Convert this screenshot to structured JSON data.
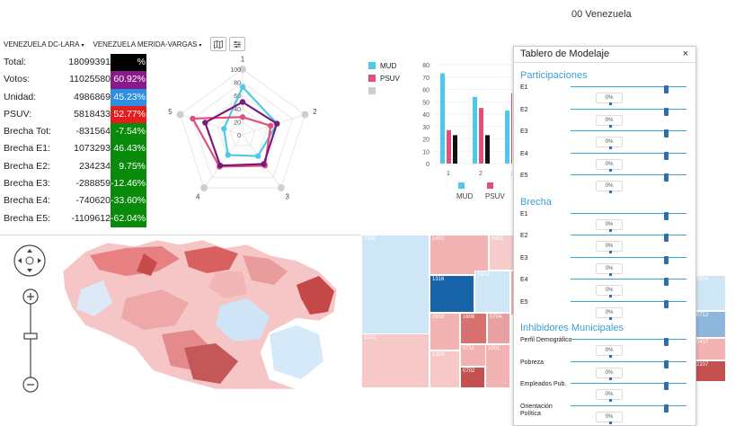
{
  "window": {
    "title": "00 Venezuela"
  },
  "toolbar": {
    "dropdown1": "VENEZUELA DC-LARA",
    "dropdown2": "VENEZUELA MERIDA-VARGAS",
    "caret": "▾",
    "map_icon": "map-icon",
    "settings_icon": "sliders-icon"
  },
  "stats": [
    {
      "label": "Total:",
      "value": "18099391",
      "pct": "%",
      "color": "#000000"
    },
    {
      "label": "Votos:",
      "value": "11025580",
      "pct": "60.92%",
      "color": "#8a1a8a"
    },
    {
      "label": "Unidad:",
      "value": "4986869",
      "pct": "45.23%",
      "color": "#2d8fe3"
    },
    {
      "label": "PSUV:",
      "value": "5818433",
      "pct": "52.77%",
      "color": "#e51d1d"
    },
    {
      "label": "Brecha Tot:",
      "value": "-831564",
      "pct": "-7.54%",
      "color": "#0a8a0a"
    },
    {
      "label": "Brecha E1:",
      "value": "1073293",
      "pct": "46.43%",
      "color": "#0a8a0a"
    },
    {
      "label": "Brecha E2:",
      "value": "234234",
      "pct": "9.75%",
      "color": "#0a8a0a"
    },
    {
      "label": "Brecha E3:",
      "value": "-288859",
      "pct": "-12.46%",
      "color": "#0a8a0a"
    },
    {
      "label": "Brecha E4:",
      "value": "-740620",
      "pct": "-33.60%",
      "color": "#0a8a0a"
    },
    {
      "label": "Brecha E5:",
      "value": "-1109612",
      "pct": "-62.04%",
      "color": "#0a8a0a"
    }
  ],
  "chart_data": [
    {
      "type": "radar",
      "axes": [
        "1",
        "2",
        "3",
        "4",
        "5"
      ],
      "scale_ticks": [
        "0",
        "20",
        "40",
        "60",
        "80",
        "100"
      ],
      "rmax": 100,
      "series": [
        {
          "color": "#4fc9e8",
          "values": [
            73,
            55,
            40,
            38,
            30
          ]
        },
        {
          "color": "#e0507a",
          "values": [
            27,
            45,
            58,
            60,
            80
          ]
        },
        {
          "color": "#7a1a7a",
          "values": [
            50,
            55,
            55,
            58,
            60
          ]
        }
      ]
    },
    {
      "type": "bar",
      "categories": [
        "1",
        "2",
        "3"
      ],
      "ylim": [
        0,
        80
      ],
      "yticks": [
        "0",
        "10",
        "20",
        "30",
        "40",
        "50",
        "60",
        "70",
        "80"
      ],
      "series": [
        {
          "name": "MUD",
          "color": "#4fc9e8",
          "values": [
            73,
            54,
            43
          ]
        },
        {
          "name": "PSUV",
          "color": "#e0507a",
          "values": [
            27,
            45,
            57
          ]
        },
        {
          "name": "",
          "color": "#111111",
          "values": [
            23,
            23,
            0
          ]
        }
      ]
    }
  ],
  "legend": [
    {
      "name": "MUD",
      "color": "#4fc9e8"
    },
    {
      "name": "PSUV",
      "color": "#e0507a"
    },
    {
      "name": "",
      "color": "#cccccc"
    }
  ],
  "treemap": [
    {
      "text": "2106",
      "color": "#cfe6f7"
    },
    {
      "text": "1407",
      "color": "#f3b3b3"
    },
    {
      "text": "0401",
      "color": "#f7cccc"
    },
    {
      "text": "1316",
      "color": "#1864a8"
    },
    {
      "text": "1603",
      "color": "#cfe6f7"
    },
    {
      "text": "0910",
      "color": "#f3b3b3"
    },
    {
      "text": "1606",
      "color": "#d97070"
    },
    {
      "text": "0704",
      "color": "#e8a0a0"
    },
    {
      "text": "1102",
      "color": "#f7c8c8"
    },
    {
      "text": "1303",
      "color": "#f7c8c8"
    },
    {
      "text": "0711",
      "color": "#f3b3b3"
    },
    {
      "text": "0702",
      "color": "#c45050"
    },
    {
      "text": "1001",
      "color": "#f3b3b3"
    },
    {
      "text": "0707",
      "color": "#f7cccc"
    },
    {
      "text": "1805",
      "color": "#f3b3b3"
    },
    {
      "text": "0904",
      "color": "#cfe6f7"
    },
    {
      "text": "0712",
      "color": "#8fb7dc"
    },
    {
      "text": "0417",
      "color": "#f3b3b3"
    },
    {
      "text": "2107",
      "color": "#c45050"
    }
  ],
  "panel": {
    "title": "Tablero de Modelaje",
    "close": "×",
    "sections": [
      {
        "title": "Participaciones",
        "items": [
          "E1",
          "E2",
          "E3",
          "E4",
          "E5"
        ]
      },
      {
        "title": "Brecha",
        "items": [
          "E1",
          "E2",
          "E3",
          "E4",
          "E5"
        ]
      },
      {
        "title": "Inhibidores Municipales",
        "items": [
          "Perfil Demográfico",
          "Pobreza",
          "Empleados Pub.",
          "Orientación Política"
        ]
      }
    ],
    "value": "0%"
  },
  "map": {
    "pan_icon": "pan-icon",
    "zoom_in": "+",
    "zoom_out": "−"
  }
}
